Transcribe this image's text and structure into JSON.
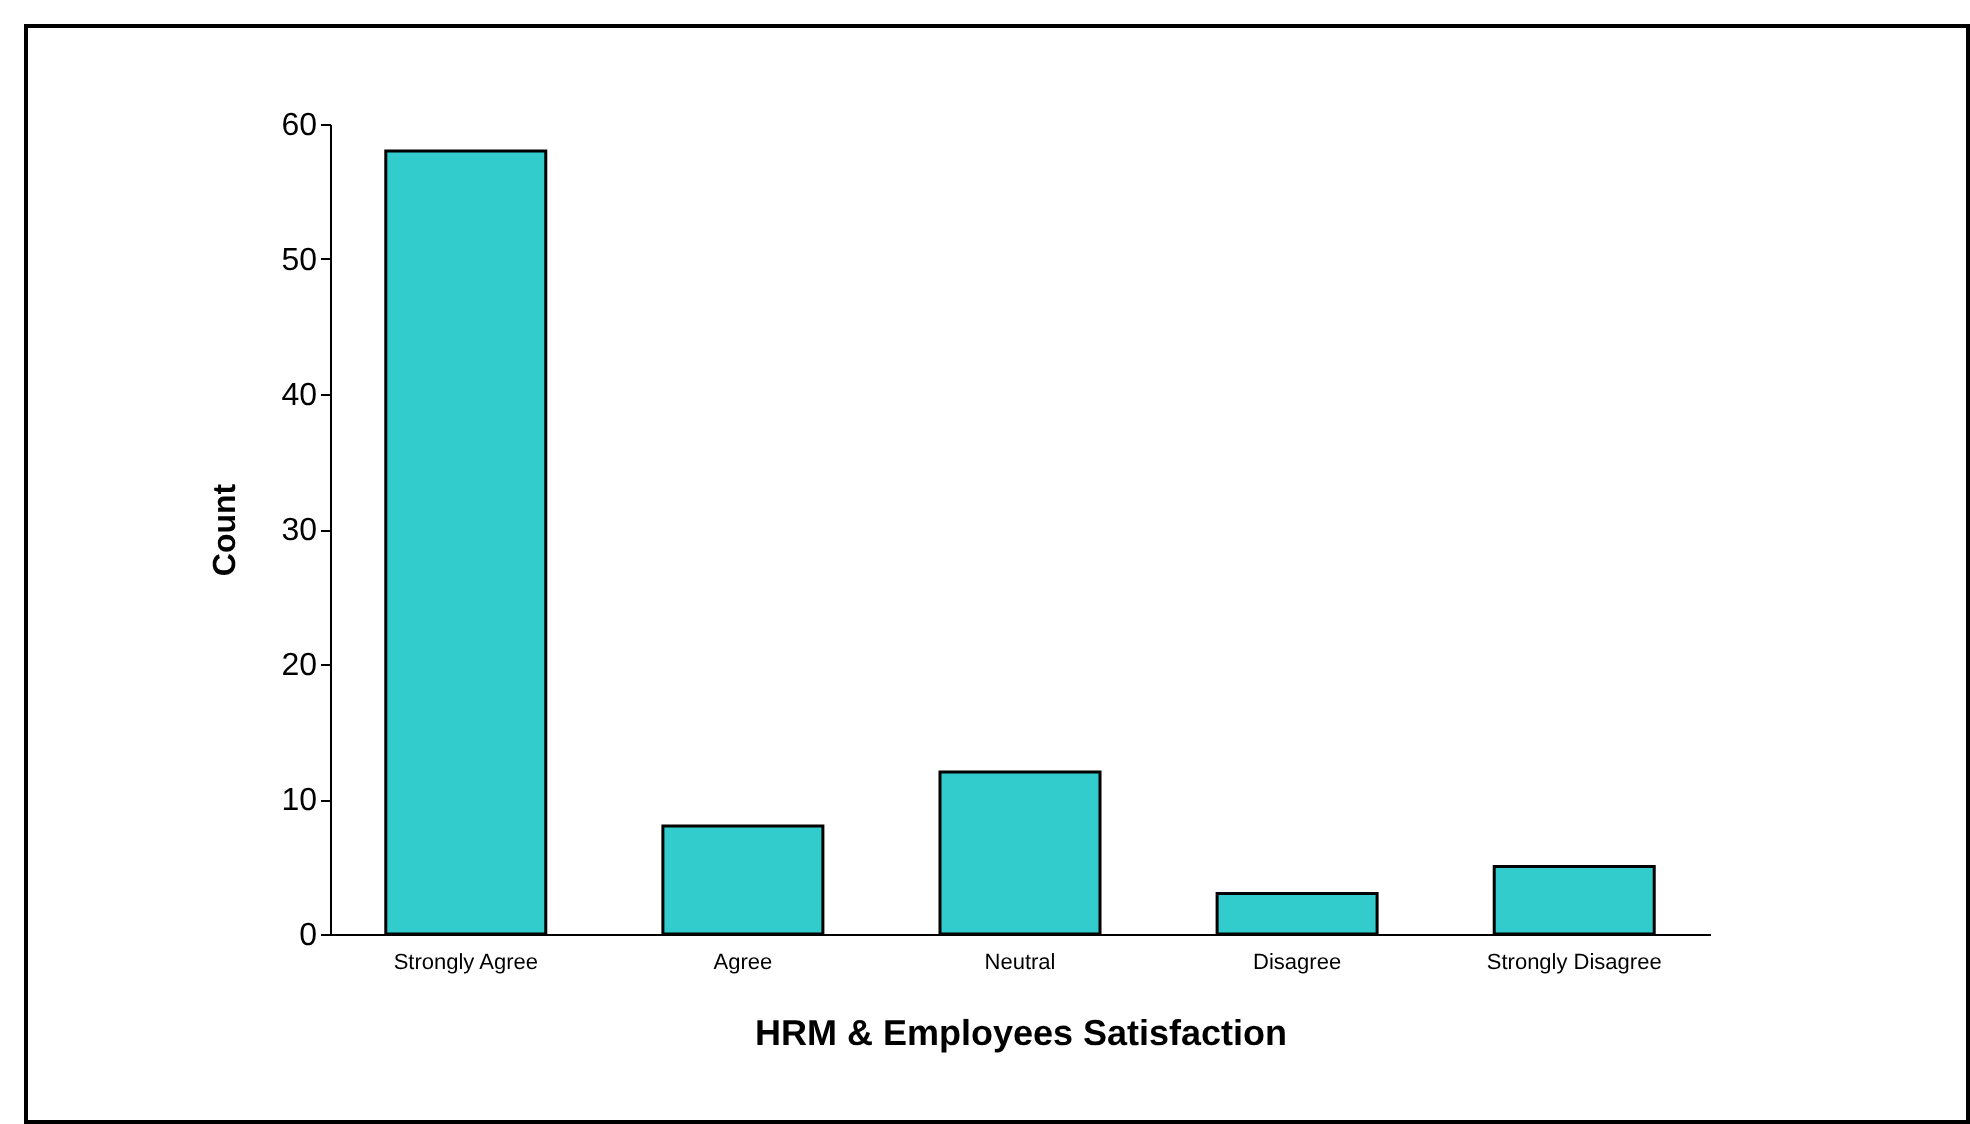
{
  "chart_data": {
    "type": "bar",
    "xlabel": "HRM & Employees Satisfaction",
    "ylabel": "Count",
    "categories": [
      "Strongly Agree",
      "Agree",
      "Neutral",
      "Disagree",
      "Strongly Disagree"
    ],
    "values": [
      58,
      8,
      12,
      3,
      5
    ],
    "color": "#33cccc",
    "ylim": [
      0,
      60
    ],
    "yticks": [
      0,
      10,
      20,
      30,
      40,
      50,
      60
    ],
    "grid": false
  }
}
